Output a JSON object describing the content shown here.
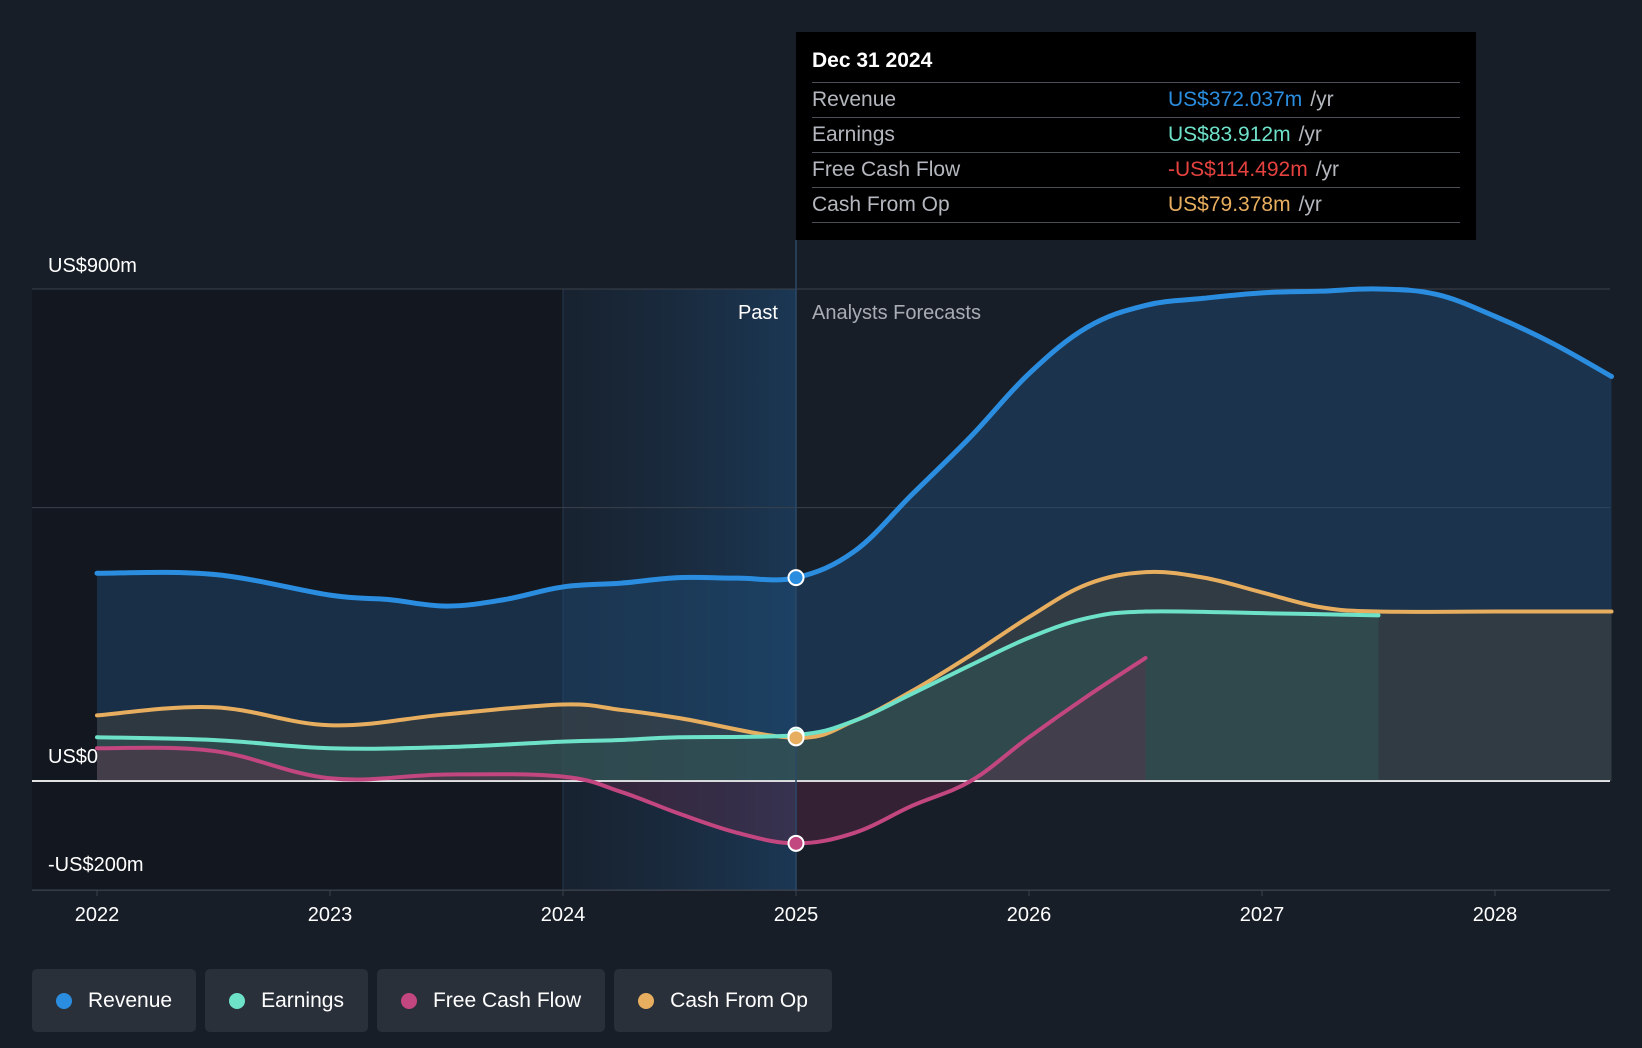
{
  "chart_data": {
    "type": "area",
    "x_range": [
      2021.75,
      2028.5
    ],
    "y_range": [
      -236,
      900
    ],
    "x_ticks": [
      "2022",
      "2023",
      "2024",
      "2025",
      "2026",
      "2027",
      "2028"
    ],
    "y_axis_labels": [
      {
        "label": "US$900m",
        "value": 900
      },
      {
        "label": "US$0",
        "value": 0
      },
      {
        "label": "-US$200m",
        "value": -200
      }
    ],
    "gridlines": [
      900,
      500,
      0,
      -200
    ],
    "past_label": "Past",
    "forecast_label": "Analysts Forecasts",
    "divider_x": 2025.0,
    "highlight_start_x": 2024.0,
    "series": [
      {
        "name": "Revenue",
        "color": "#2b8ddf",
        "points": [
          [
            2022.0,
            380
          ],
          [
            2022.5,
            378
          ],
          [
            2023.0,
            340
          ],
          [
            2023.25,
            332
          ],
          [
            2023.5,
            320
          ],
          [
            2023.75,
            332
          ],
          [
            2024.0,
            355
          ],
          [
            2024.25,
            362
          ],
          [
            2024.5,
            372
          ],
          [
            2024.75,
            371
          ],
          [
            2025.0,
            372
          ],
          [
            2025.25,
            420
          ],
          [
            2025.5,
            525
          ],
          [
            2025.75,
            630
          ],
          [
            2026.0,
            745
          ],
          [
            2026.25,
            830
          ],
          [
            2026.5,
            870
          ],
          [
            2026.75,
            883
          ],
          [
            2027.0,
            893
          ],
          [
            2027.25,
            896
          ],
          [
            2027.5,
            900
          ],
          [
            2027.75,
            890
          ],
          [
            2028.0,
            850
          ],
          [
            2028.25,
            800
          ],
          [
            2028.5,
            740
          ]
        ]
      },
      {
        "name": "Earnings",
        "color": "#6ee1c9",
        "points": [
          [
            2022.0,
            80
          ],
          [
            2022.5,
            75
          ],
          [
            2023.0,
            60
          ],
          [
            2023.5,
            62
          ],
          [
            2024.0,
            72
          ],
          [
            2024.25,
            75
          ],
          [
            2024.5,
            80
          ],
          [
            2025.0,
            84
          ],
          [
            2025.25,
            110
          ],
          [
            2025.5,
            160
          ],
          [
            2025.75,
            212
          ],
          [
            2026.0,
            262
          ],
          [
            2026.25,
            298
          ],
          [
            2026.5,
            310
          ],
          [
            2027.0,
            307
          ],
          [
            2027.5,
            303
          ]
        ]
      },
      {
        "name": "Free Cash Flow",
        "color": "#c2467f",
        "points": [
          [
            2022.0,
            60
          ],
          [
            2022.5,
            55
          ],
          [
            2023.0,
            5
          ],
          [
            2023.5,
            12
          ],
          [
            2024.0,
            8
          ],
          [
            2024.25,
            -20
          ],
          [
            2024.5,
            -60
          ],
          [
            2024.75,
            -95
          ],
          [
            2025.0,
            -114
          ],
          [
            2025.25,
            -95
          ],
          [
            2025.5,
            -45
          ],
          [
            2025.75,
            0
          ],
          [
            2026.0,
            80
          ],
          [
            2026.25,
            155
          ],
          [
            2026.5,
            225
          ]
        ]
      },
      {
        "name": "Cash From Op",
        "color": "#e8ae5f",
        "points": [
          [
            2022.0,
            120
          ],
          [
            2022.5,
            135
          ],
          [
            2023.0,
            102
          ],
          [
            2023.5,
            122
          ],
          [
            2024.0,
            140
          ],
          [
            2024.25,
            130
          ],
          [
            2024.5,
            115
          ],
          [
            2025.0,
            79
          ],
          [
            2025.25,
            110
          ],
          [
            2025.5,
            165
          ],
          [
            2025.75,
            230
          ],
          [
            2026.0,
            300
          ],
          [
            2026.25,
            360
          ],
          [
            2026.5,
            382
          ],
          [
            2026.75,
            372
          ],
          [
            2027.0,
            345
          ],
          [
            2027.25,
            318
          ],
          [
            2027.5,
            310
          ],
          [
            2028.0,
            310
          ],
          [
            2028.5,
            310
          ]
        ]
      }
    ],
    "markers_at_x": 2025.0,
    "marker_series": [
      "Revenue",
      "Earnings",
      "Cash From Op",
      "Free Cash Flow"
    ]
  },
  "tooltip": {
    "date": "Dec 31 2024",
    "rows": [
      {
        "name": "Revenue",
        "value": "US$372.037m",
        "unit": "/yr",
        "color": "#2b8ddf"
      },
      {
        "name": "Earnings",
        "value": "US$83.912m",
        "unit": "/yr",
        "color": "#6ee1c9"
      },
      {
        "name": "Free Cash Flow",
        "value": "-US$114.492m",
        "unit": "/yr",
        "color": "#e5423f"
      },
      {
        "name": "Cash From Op",
        "value": "US$79.378m",
        "unit": "/yr",
        "color": "#e8ae5f"
      }
    ]
  },
  "legend": [
    {
      "label": "Revenue",
      "color": "#2b8ddf"
    },
    {
      "label": "Earnings",
      "color": "#6ee1c9"
    },
    {
      "label": "Free Cash Flow",
      "color": "#c2467f"
    },
    {
      "label": "Cash From Op",
      "color": "#e8ae5f"
    }
  ]
}
